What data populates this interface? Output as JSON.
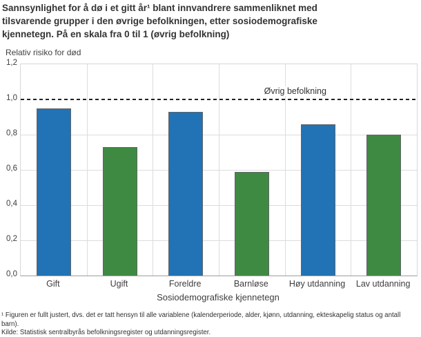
{
  "title_lines": [
    "Sannsynlighet for å dø i et gitt år¹ blant innvandrere sammenliknet med",
    "tilsvarende grupper i den øvrige befolkningen, etter sosiodemografiske",
    "kjennetegn. På en skala fra 0 til 1 (øvrig befolkning)"
  ],
  "chart_data": {
    "type": "bar",
    "title": "Sannsynlighet for å dø i et gitt år¹ blant innvandrere sammenliknet med tilsvarende grupper i den øvrige befolkningen, etter sosiodemografiske kjennetegn. På en skala fra 0 til 1 (øvrig befolkning)",
    "ylabel": "Relativ risiko for død",
    "xlabel": "Sosiodemografiske kjennetegn",
    "categories": [
      "Gift",
      "Ugift",
      "Foreldre",
      "Barnløse",
      "Høy utdanning",
      "Lav utdanning"
    ],
    "values": [
      0.95,
      0.73,
      0.93,
      0.59,
      0.86,
      0.8
    ],
    "bar_colors": [
      "#2173b5",
      "#3e8a43",
      "#2173b5",
      "#3e8a43",
      "#2173b5",
      "#3e8a43"
    ],
    "ylim": [
      0,
      1.2
    ],
    "yticks": [
      {
        "v": 0,
        "label": "0,0"
      },
      {
        "v": 0.2,
        "label": "0,2"
      },
      {
        "v": 0.4,
        "label": "0,4"
      },
      {
        "v": 0.6,
        "label": "0,6"
      },
      {
        "v": 0.8,
        "label": "0,8"
      },
      {
        "v": 1.0,
        "label": "1,0"
      },
      {
        "v": 1.2,
        "label": "1,2"
      }
    ],
    "grid": true,
    "legend": "none",
    "reference_line": {
      "value": 1.0,
      "label": "Øvrig befolkning",
      "style": "dashed",
      "label_x_fraction": 0.693
    },
    "colors": {
      "blue": "#2173b5",
      "green": "#3e8a43",
      "grid": "#dcdcdc",
      "axis": "#9c9c9c",
      "reference": "#222222"
    }
  },
  "footnotes": {
    "note": "¹ Figuren er fullt justert, dvs. det er tatt hensyn til alle variablene (kalenderperiode, alder, kjønn, utdanning, ekteskapelig status og antall barn).",
    "source": "Kilde: Statistisk sentralbyrås befolkningsregister og utdanningsregister."
  }
}
